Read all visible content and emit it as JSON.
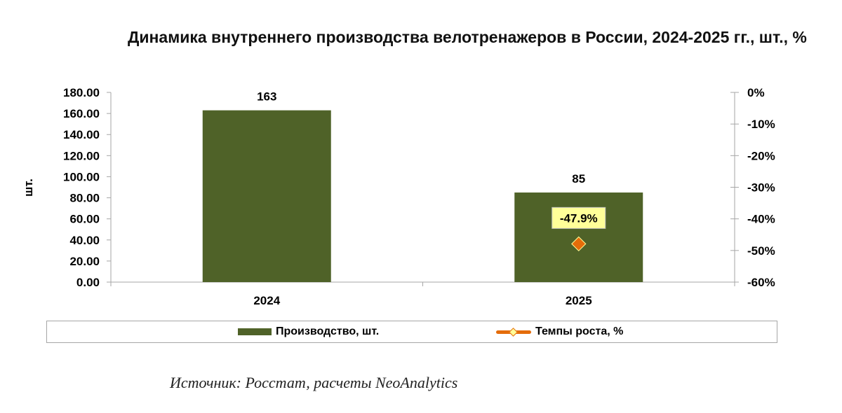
{
  "chart_data": {
    "type": "bar",
    "title": "Динамика внутреннего производства велотренажеров в России, 2024-2025 гг., шт., %",
    "ylabel": "шт.",
    "xlabel": "",
    "categories": [
      "2024",
      "2025"
    ],
    "ylim": [
      0,
      180
    ],
    "y_ticks": [
      "0.00",
      "20.00",
      "40.00",
      "60.00",
      "80.00",
      "100.00",
      "120.00",
      "140.00",
      "160.00",
      "180.00"
    ],
    "y2lim": [
      -60,
      0
    ],
    "y2_ticks": [
      "-60%",
      "-50%",
      "-40%",
      "-30%",
      "-20%",
      "-10%",
      "0%"
    ],
    "series": [
      {
        "name": "Производство, шт.",
        "type": "bar",
        "axis": "left",
        "color": "#4f6228",
        "values": [
          163,
          85
        ],
        "data_labels": [
          "163",
          "85"
        ]
      },
      {
        "name": "Темпы роста, %",
        "type": "line",
        "axis": "right",
        "color": "#e46c0a",
        "marker_fill": "#ffff99",
        "values": [
          null,
          -47.9
        ],
        "data_labels": [
          "",
          "-47.9%"
        ]
      }
    ],
    "legend_position": "bottom",
    "grid": false
  },
  "source_text": "Источник: Росстат, расчеты NeoAnalytics"
}
